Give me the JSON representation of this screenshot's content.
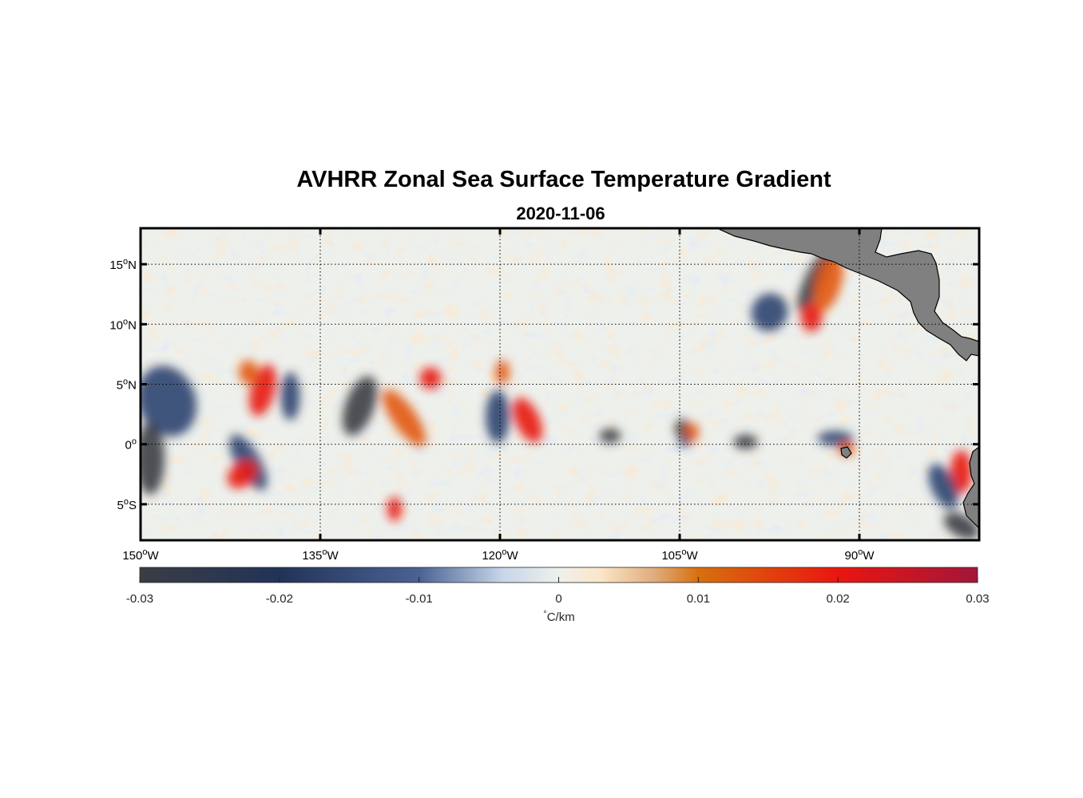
{
  "title": "AVHRR Zonal Sea Surface Temperature Gradient",
  "subtitle": "2020-11-06",
  "map": {
    "lon_range": [
      -150,
      -80
    ],
    "lat_range": [
      -8,
      18
    ],
    "grid": true,
    "land_color": "#808080",
    "lon_ticks": [
      {
        "value": -150,
        "label": "150",
        "sup": "o",
        "hemi": "W"
      },
      {
        "value": -135,
        "label": "135",
        "sup": "o",
        "hemi": "W"
      },
      {
        "value": -120,
        "label": "120",
        "sup": "o",
        "hemi": "W"
      },
      {
        "value": -105,
        "label": "105",
        "sup": "o",
        "hemi": "W"
      },
      {
        "value": -90,
        "label": "90",
        "sup": "o",
        "hemi": "W"
      }
    ],
    "lat_ticks": [
      {
        "value": 15,
        "label": "15",
        "sup": "o",
        "hemi": "N"
      },
      {
        "value": 10,
        "label": "10",
        "sup": "o",
        "hemi": "N"
      },
      {
        "value": 5,
        "label": "5",
        "sup": "o",
        "hemi": "N"
      },
      {
        "value": 0,
        "label": "0",
        "sup": "o",
        "hemi": ""
      },
      {
        "value": -5,
        "label": "5",
        "sup": "o",
        "hemi": "S"
      }
    ]
  },
  "colorbar": {
    "range": [
      -0.03,
      0.03
    ],
    "ticks": [
      {
        "value": -0.03,
        "label": "-0.03"
      },
      {
        "value": -0.02,
        "label": "-0.02"
      },
      {
        "value": -0.01,
        "label": "-0.01"
      },
      {
        "value": 0,
        "label": "0"
      },
      {
        "value": 0.01,
        "label": "0.01"
      },
      {
        "value": 0.02,
        "label": "0.02"
      },
      {
        "value": 0.03,
        "label": "0.03"
      }
    ],
    "unit_deg": "°",
    "unit_text": "C/km",
    "stops": [
      {
        "value": -0.03,
        "color": "#3a3d44"
      },
      {
        "value": -0.02,
        "color": "#223358"
      },
      {
        "value": -0.01,
        "color": "#4a6294"
      },
      {
        "value": -0.004,
        "color": "#c7d6ea"
      },
      {
        "value": 0,
        "color": "#eef0ec"
      },
      {
        "value": 0.003,
        "color": "#fbe6c8"
      },
      {
        "value": 0.007,
        "color": "#e0a978"
      },
      {
        "value": 0.01,
        "color": "#d7700c"
      },
      {
        "value": 0.02,
        "color": "#ea1510"
      },
      {
        "value": 0.03,
        "color": "#a3163a"
      }
    ]
  },
  "features": [
    {
      "kind": "neg",
      "lon": -147.8,
      "lat": 3.6,
      "rx": 2.4,
      "ry": 3.0,
      "rot": -20
    },
    {
      "kind": "neg",
      "lon": -149.2,
      "lat": -1.2,
      "rx": 1.2,
      "ry": 3.0,
      "rot": 0
    },
    {
      "kind": "neg",
      "lon": -141.0,
      "lat": -1.5,
      "rx": 1.0,
      "ry": 2.6,
      "rot": -30
    },
    {
      "kind": "pos",
      "lon": -139.8,
      "lat": 4.5,
      "rx": 1.0,
      "ry": 2.2,
      "rot": 15
    },
    {
      "kind": "pos",
      "lon": -141.0,
      "lat": 6.0,
      "rx": 0.8,
      "ry": 1.0,
      "rot": 0
    },
    {
      "kind": "pos",
      "lon": -141.5,
      "lat": -2.5,
      "rx": 1.4,
      "ry": 1.0,
      "rot": -40
    },
    {
      "kind": "neg",
      "lon": -137.5,
      "lat": 4.0,
      "rx": 0.8,
      "ry": 2.0,
      "rot": 0
    },
    {
      "kind": "neg",
      "lon": -131.7,
      "lat": 3.2,
      "rx": 1.2,
      "ry": 2.6,
      "rot": 20
    },
    {
      "kind": "pos",
      "lon": -128.0,
      "lat": 2.2,
      "rx": 1.0,
      "ry": 2.8,
      "rot": -35
    },
    {
      "kind": "pos",
      "lon": -125.8,
      "lat": 5.5,
      "rx": 0.9,
      "ry": 0.9,
      "rot": 0
    },
    {
      "kind": "neg",
      "lon": -120.2,
      "lat": 2.3,
      "rx": 1.0,
      "ry": 2.2,
      "rot": 0
    },
    {
      "kind": "pos",
      "lon": -117.7,
      "lat": 2.0,
      "rx": 1.0,
      "ry": 2.0,
      "rot": -25
    },
    {
      "kind": "pos",
      "lon": -119.8,
      "lat": 6.0,
      "rx": 0.6,
      "ry": 1.0,
      "rot": 0
    },
    {
      "kind": "neg",
      "lon": -104.8,
      "lat": 1.3,
      "rx": 0.6,
      "ry": 0.8,
      "rot": 0
    },
    {
      "kind": "pos",
      "lon": -104.0,
      "lat": 1.0,
      "rx": 0.6,
      "ry": 0.8,
      "rot": 0
    },
    {
      "kind": "neg",
      "lon": -110.8,
      "lat": 0.7,
      "rx": 0.9,
      "ry": 0.6,
      "rot": 0
    },
    {
      "kind": "neg",
      "lon": -97.5,
      "lat": 11.0,
      "rx": 1.5,
      "ry": 1.6,
      "rot": 30
    },
    {
      "kind": "neg",
      "lon": -93.8,
      "lat": 13.6,
      "rx": 0.8,
      "ry": 2.8,
      "rot": 25
    },
    {
      "kind": "pos",
      "lon": -92.6,
      "lat": 13.5,
      "rx": 1.1,
      "ry": 2.5,
      "rot": 15
    },
    {
      "kind": "pos",
      "lon": -94.0,
      "lat": 10.6,
      "rx": 0.9,
      "ry": 1.2,
      "rot": 0
    },
    {
      "kind": "neg",
      "lon": -92.0,
      "lat": 0.5,
      "rx": 1.5,
      "ry": 0.6,
      "rot": 0
    },
    {
      "kind": "neg",
      "lon": -99.5,
      "lat": 0.2,
      "rx": 1.0,
      "ry": 0.6,
      "rot": 0
    },
    {
      "kind": "pos",
      "lon": -91.1,
      "lat": -0.4,
      "rx": 0.7,
      "ry": 0.6,
      "rot": 0
    },
    {
      "kind": "pos",
      "lon": -81.5,
      "lat": -2.3,
      "rx": 0.9,
      "ry": 1.8,
      "rot": 0
    },
    {
      "kind": "neg",
      "lon": -83.0,
      "lat": -3.5,
      "rx": 1.0,
      "ry": 2.0,
      "rot": -25
    },
    {
      "kind": "neg",
      "lon": -81.5,
      "lat": -6.8,
      "rx": 1.6,
      "ry": 0.9,
      "rot": 30
    },
    {
      "kind": "neg",
      "lon": -104.6,
      "lat": 0.2,
      "rx": 0.5,
      "ry": 0.4,
      "rot": 0
    },
    {
      "kind": "pos",
      "lon": -128.8,
      "lat": -5.4,
      "rx": 0.6,
      "ry": 1.0,
      "rot": 0
    }
  ]
}
